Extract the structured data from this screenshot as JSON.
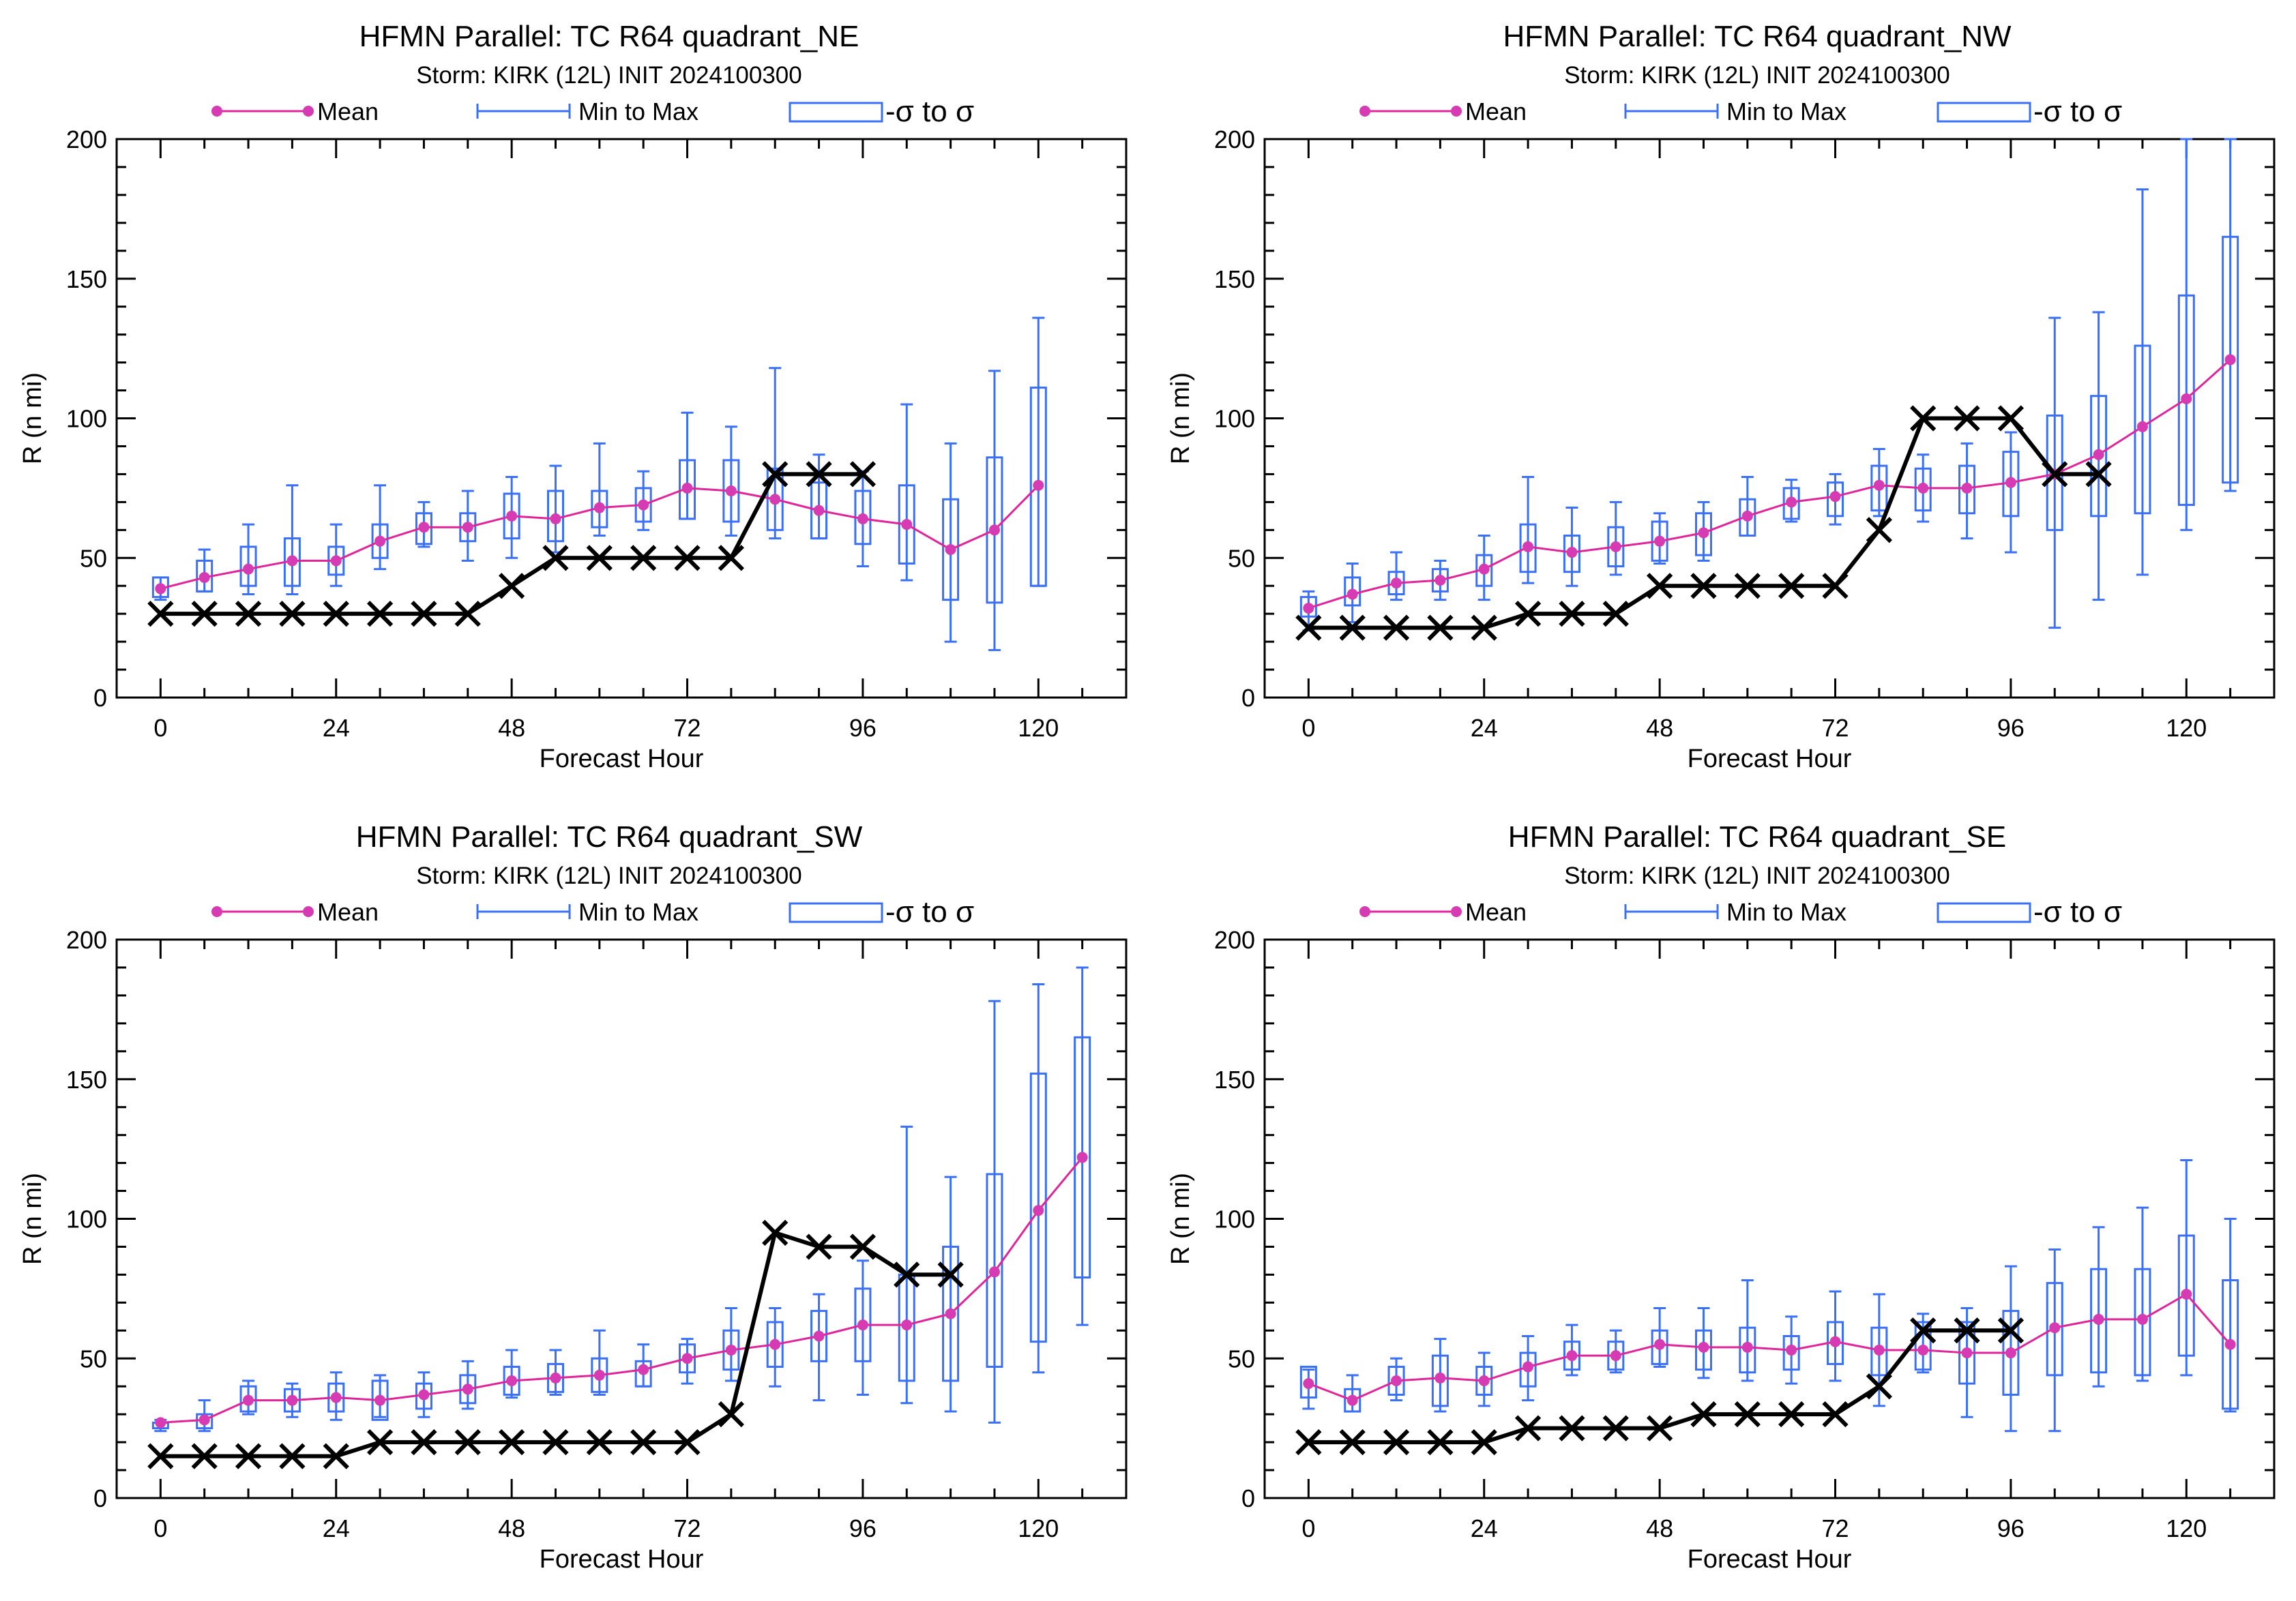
{
  "legend": {
    "mean_label": "Mean",
    "minmax_label": "Min to Max",
    "sigma_label": "-σ to σ"
  },
  "colors": {
    "mean": "#e0249a",
    "mean_dot": "#d63bb3",
    "ensemble": "#3a6ff7",
    "tc": "#000000",
    "axes": "#000000",
    "background": "#ffffff"
  },
  "chart_data": [
    {
      "type": "line",
      "title": "HFMN Parallel: TC  R64 quadrant_NE",
      "subtitle": "Storm: KIRK (12L) INIT 2024100300",
      "xlabel": "Forecast Hour",
      "ylabel": "R (n mi)",
      "xlim": [
        -6,
        132
      ],
      "ylim": [
        0,
        200
      ],
      "xticks": [
        0,
        24,
        48,
        72,
        96,
        120
      ],
      "yticks": [
        0,
        50,
        100,
        150,
        200
      ],
      "legend_position": "top",
      "grid": false,
      "ensemble_hours": [
        0,
        6,
        12,
        18,
        24,
        30,
        36,
        42,
        48,
        54,
        60,
        66,
        72,
        78,
        84,
        90,
        96,
        102,
        108,
        114,
        120
      ],
      "series": [
        {
          "name": "Mean",
          "values": [
            39,
            43,
            46,
            49,
            49,
            56,
            61,
            61,
            65,
            64,
            68,
            69,
            75,
            74,
            71,
            67,
            64,
            62,
            53,
            60,
            76
          ]
        },
        {
          "name": "Min to Max",
          "min": [
            35,
            38,
            37,
            37,
            40,
            46,
            54,
            49,
            50,
            52,
            58,
            60,
            64,
            58,
            57,
            57,
            47,
            42,
            20,
            17,
            40
          ],
          "max": [
            43,
            53,
            62,
            76,
            62,
            76,
            70,
            74,
            79,
            83,
            91,
            81,
            102,
            97,
            118,
            87,
            81,
            105,
            91,
            117,
            136
          ]
        },
        {
          "name": "-σ to σ",
          "low": [
            36,
            38,
            40,
            40,
            44,
            50,
            55,
            56,
            57,
            56,
            61,
            63,
            64,
            63,
            60,
            57,
            55,
            48,
            35,
            34,
            40
          ],
          "high": [
            43,
            49,
            54,
            57,
            54,
            62,
            66,
            66,
            73,
            74,
            74,
            75,
            85,
            85,
            82,
            77,
            74,
            76,
            71,
            86,
            111
          ]
        }
      ],
      "tc_x": [
        0,
        6,
        12,
        18,
        24,
        30,
        36,
        42,
        48,
        54,
        60,
        66,
        72,
        78,
        84,
        90,
        96
      ],
      "tc_y": [
        30,
        30,
        30,
        30,
        30,
        30,
        30,
        30,
        40,
        50,
        50,
        50,
        50,
        50,
        80,
        80,
        80
      ]
    },
    {
      "type": "line",
      "title": "HFMN Parallel: TC  R64 quadrant_NW",
      "subtitle": "Storm: KIRK (12L) INIT 2024100300",
      "xlabel": "Forecast Hour",
      "ylabel": "R (n mi)",
      "xlim": [
        -6,
        132
      ],
      "ylim": [
        0,
        200
      ],
      "xticks": [
        0,
        24,
        48,
        72,
        96,
        120
      ],
      "yticks": [
        0,
        50,
        100,
        150,
        200
      ],
      "legend_position": "top",
      "grid": false,
      "ensemble_hours": [
        0,
        6,
        12,
        18,
        24,
        30,
        36,
        42,
        48,
        54,
        60,
        66,
        72,
        78,
        84,
        90,
        96,
        102,
        108,
        114,
        120,
        126
      ],
      "series": [
        {
          "name": "Mean",
          "values": [
            32,
            37,
            41,
            42,
            46,
            54,
            52,
            54,
            56,
            59,
            65,
            70,
            72,
            76,
            75,
            75,
            77,
            80,
            87,
            97,
            107,
            121
          ]
        },
        {
          "name": "Min to Max",
          "min": [
            24,
            27,
            35,
            35,
            35,
            41,
            40,
            44,
            48,
            49,
            58,
            63,
            62,
            65,
            63,
            57,
            52,
            25,
            35,
            44,
            60,
            74
          ],
          "max": [
            38,
            48,
            52,
            49,
            58,
            79,
            68,
            70,
            66,
            70,
            79,
            78,
            80,
            89,
            87,
            91,
            95,
            136,
            138,
            182,
            200,
            200
          ]
        },
        {
          "name": "-σ to σ",
          "low": [
            29,
            33,
            37,
            38,
            40,
            45,
            45,
            47,
            49,
            51,
            58,
            64,
            65,
            67,
            67,
            66,
            65,
            60,
            65,
            66,
            69,
            77
          ],
          "high": [
            36,
            43,
            45,
            46,
            51,
            62,
            58,
            61,
            63,
            66,
            71,
            75,
            77,
            83,
            82,
            83,
            88,
            101,
            108,
            126,
            144,
            165
          ]
        }
      ],
      "tc_x": [
        0,
        6,
        12,
        18,
        24,
        30,
        36,
        42,
        48,
        54,
        60,
        66,
        72,
        78,
        84,
        90,
        96,
        102,
        108
      ],
      "tc_y": [
        25,
        25,
        25,
        25,
        25,
        30,
        30,
        30,
        40,
        40,
        40,
        40,
        40,
        60,
        100,
        100,
        100,
        80,
        80
      ]
    },
    {
      "type": "line",
      "title": "HFMN Parallel: TC  R64 quadrant_SW",
      "subtitle": "Storm: KIRK (12L) INIT 2024100300",
      "xlabel": "Forecast Hour",
      "ylabel": "R (n mi)",
      "xlim": [
        -6,
        132
      ],
      "ylim": [
        0,
        200
      ],
      "xticks": [
        0,
        24,
        48,
        72,
        96,
        120
      ],
      "yticks": [
        0,
        50,
        100,
        150,
        200
      ],
      "legend_position": "top",
      "grid": false,
      "ensemble_hours": [
        0,
        6,
        12,
        18,
        24,
        30,
        36,
        42,
        48,
        54,
        60,
        66,
        72,
        78,
        84,
        90,
        96,
        102,
        108,
        114,
        120,
        126
      ],
      "series": [
        {
          "name": "Mean",
          "values": [
            27,
            28,
            35,
            35,
            36,
            35,
            37,
            39,
            42,
            43,
            44,
            46,
            50,
            53,
            55,
            58,
            62,
            62,
            66,
            81,
            103,
            122
          ]
        },
        {
          "name": "Min to Max",
          "min": [
            24,
            24,
            30,
            29,
            28,
            29,
            29,
            32,
            36,
            37,
            37,
            40,
            41,
            42,
            40,
            35,
            37,
            34,
            31,
            27,
            45,
            62
          ],
          "max": [
            28,
            35,
            42,
            41,
            45,
            44,
            45,
            49,
            53,
            53,
            60,
            55,
            57,
            68,
            68,
            73,
            85,
            133,
            115,
            178,
            184,
            190
          ]
        },
        {
          "name": "-σ to σ",
          "low": [
            25,
            25,
            31,
            31,
            31,
            28,
            32,
            34,
            37,
            38,
            38,
            40,
            45,
            46,
            47,
            49,
            49,
            42,
            42,
            47,
            56,
            79
          ],
          "high": [
            27,
            30,
            40,
            39,
            41,
            42,
            41,
            44,
            47,
            48,
            50,
            49,
            55,
            60,
            63,
            67,
            75,
            80,
            90,
            116,
            152,
            165
          ]
        }
      ],
      "tc_x": [
        0,
        6,
        12,
        18,
        24,
        30,
        36,
        42,
        48,
        54,
        60,
        66,
        72,
        78,
        84,
        90,
        96,
        102,
        108
      ],
      "tc_y": [
        15,
        15,
        15,
        15,
        15,
        20,
        20,
        20,
        20,
        20,
        20,
        20,
        20,
        30,
        95,
        90,
        90,
        80,
        80
      ]
    },
    {
      "type": "line",
      "title": "HFMN Parallel: TC  R64 quadrant_SE",
      "subtitle": "Storm: KIRK (12L) INIT 2024100300",
      "xlabel": "Forecast Hour",
      "ylabel": "R (n mi)",
      "xlim": [
        -6,
        132
      ],
      "ylim": [
        0,
        200
      ],
      "xticks": [
        0,
        24,
        48,
        72,
        96,
        120
      ],
      "yticks": [
        0,
        50,
        100,
        150,
        200
      ],
      "legend_position": "top",
      "grid": false,
      "ensemble_hours": [
        0,
        6,
        12,
        18,
        24,
        30,
        36,
        42,
        48,
        54,
        60,
        66,
        72,
        78,
        84,
        90,
        96,
        102,
        108,
        114,
        120,
        126
      ],
      "series": [
        {
          "name": "Mean",
          "values": [
            41,
            35,
            42,
            43,
            42,
            47,
            51,
            51,
            55,
            54,
            54,
            53,
            56,
            53,
            53,
            52,
            52,
            61,
            64,
            64,
            73,
            55
          ]
        },
        {
          "name": "Min to Max",
          "min": [
            32,
            31,
            35,
            31,
            33,
            35,
            44,
            45,
            47,
            43,
            42,
            41,
            42,
            33,
            45,
            29,
            24,
            24,
            40,
            42,
            44,
            31
          ],
          "max": [
            46,
            44,
            50,
            57,
            52,
            58,
            62,
            60,
            68,
            68,
            78,
            65,
            74,
            73,
            66,
            68,
            83,
            89,
            97,
            104,
            121,
            100
          ]
        },
        {
          "name": "-σ to σ",
          "low": [
            36,
            31,
            37,
            33,
            37,
            40,
            46,
            46,
            48,
            46,
            45,
            46,
            48,
            44,
            46,
            41,
            37,
            44,
            45,
            44,
            51,
            32
          ],
          "high": [
            47,
            39,
            47,
            51,
            47,
            52,
            56,
            56,
            60,
            60,
            61,
            58,
            63,
            61,
            63,
            63,
            67,
            77,
            82,
            82,
            94,
            78
          ]
        }
      ],
      "tc_x": [
        0,
        6,
        12,
        18,
        24,
        30,
        36,
        42,
        48,
        54,
        60,
        66,
        72,
        78,
        84,
        90,
        96
      ],
      "tc_y": [
        20,
        20,
        20,
        20,
        20,
        25,
        25,
        25,
        25,
        30,
        30,
        30,
        30,
        40,
        60,
        60,
        60
      ]
    }
  ]
}
